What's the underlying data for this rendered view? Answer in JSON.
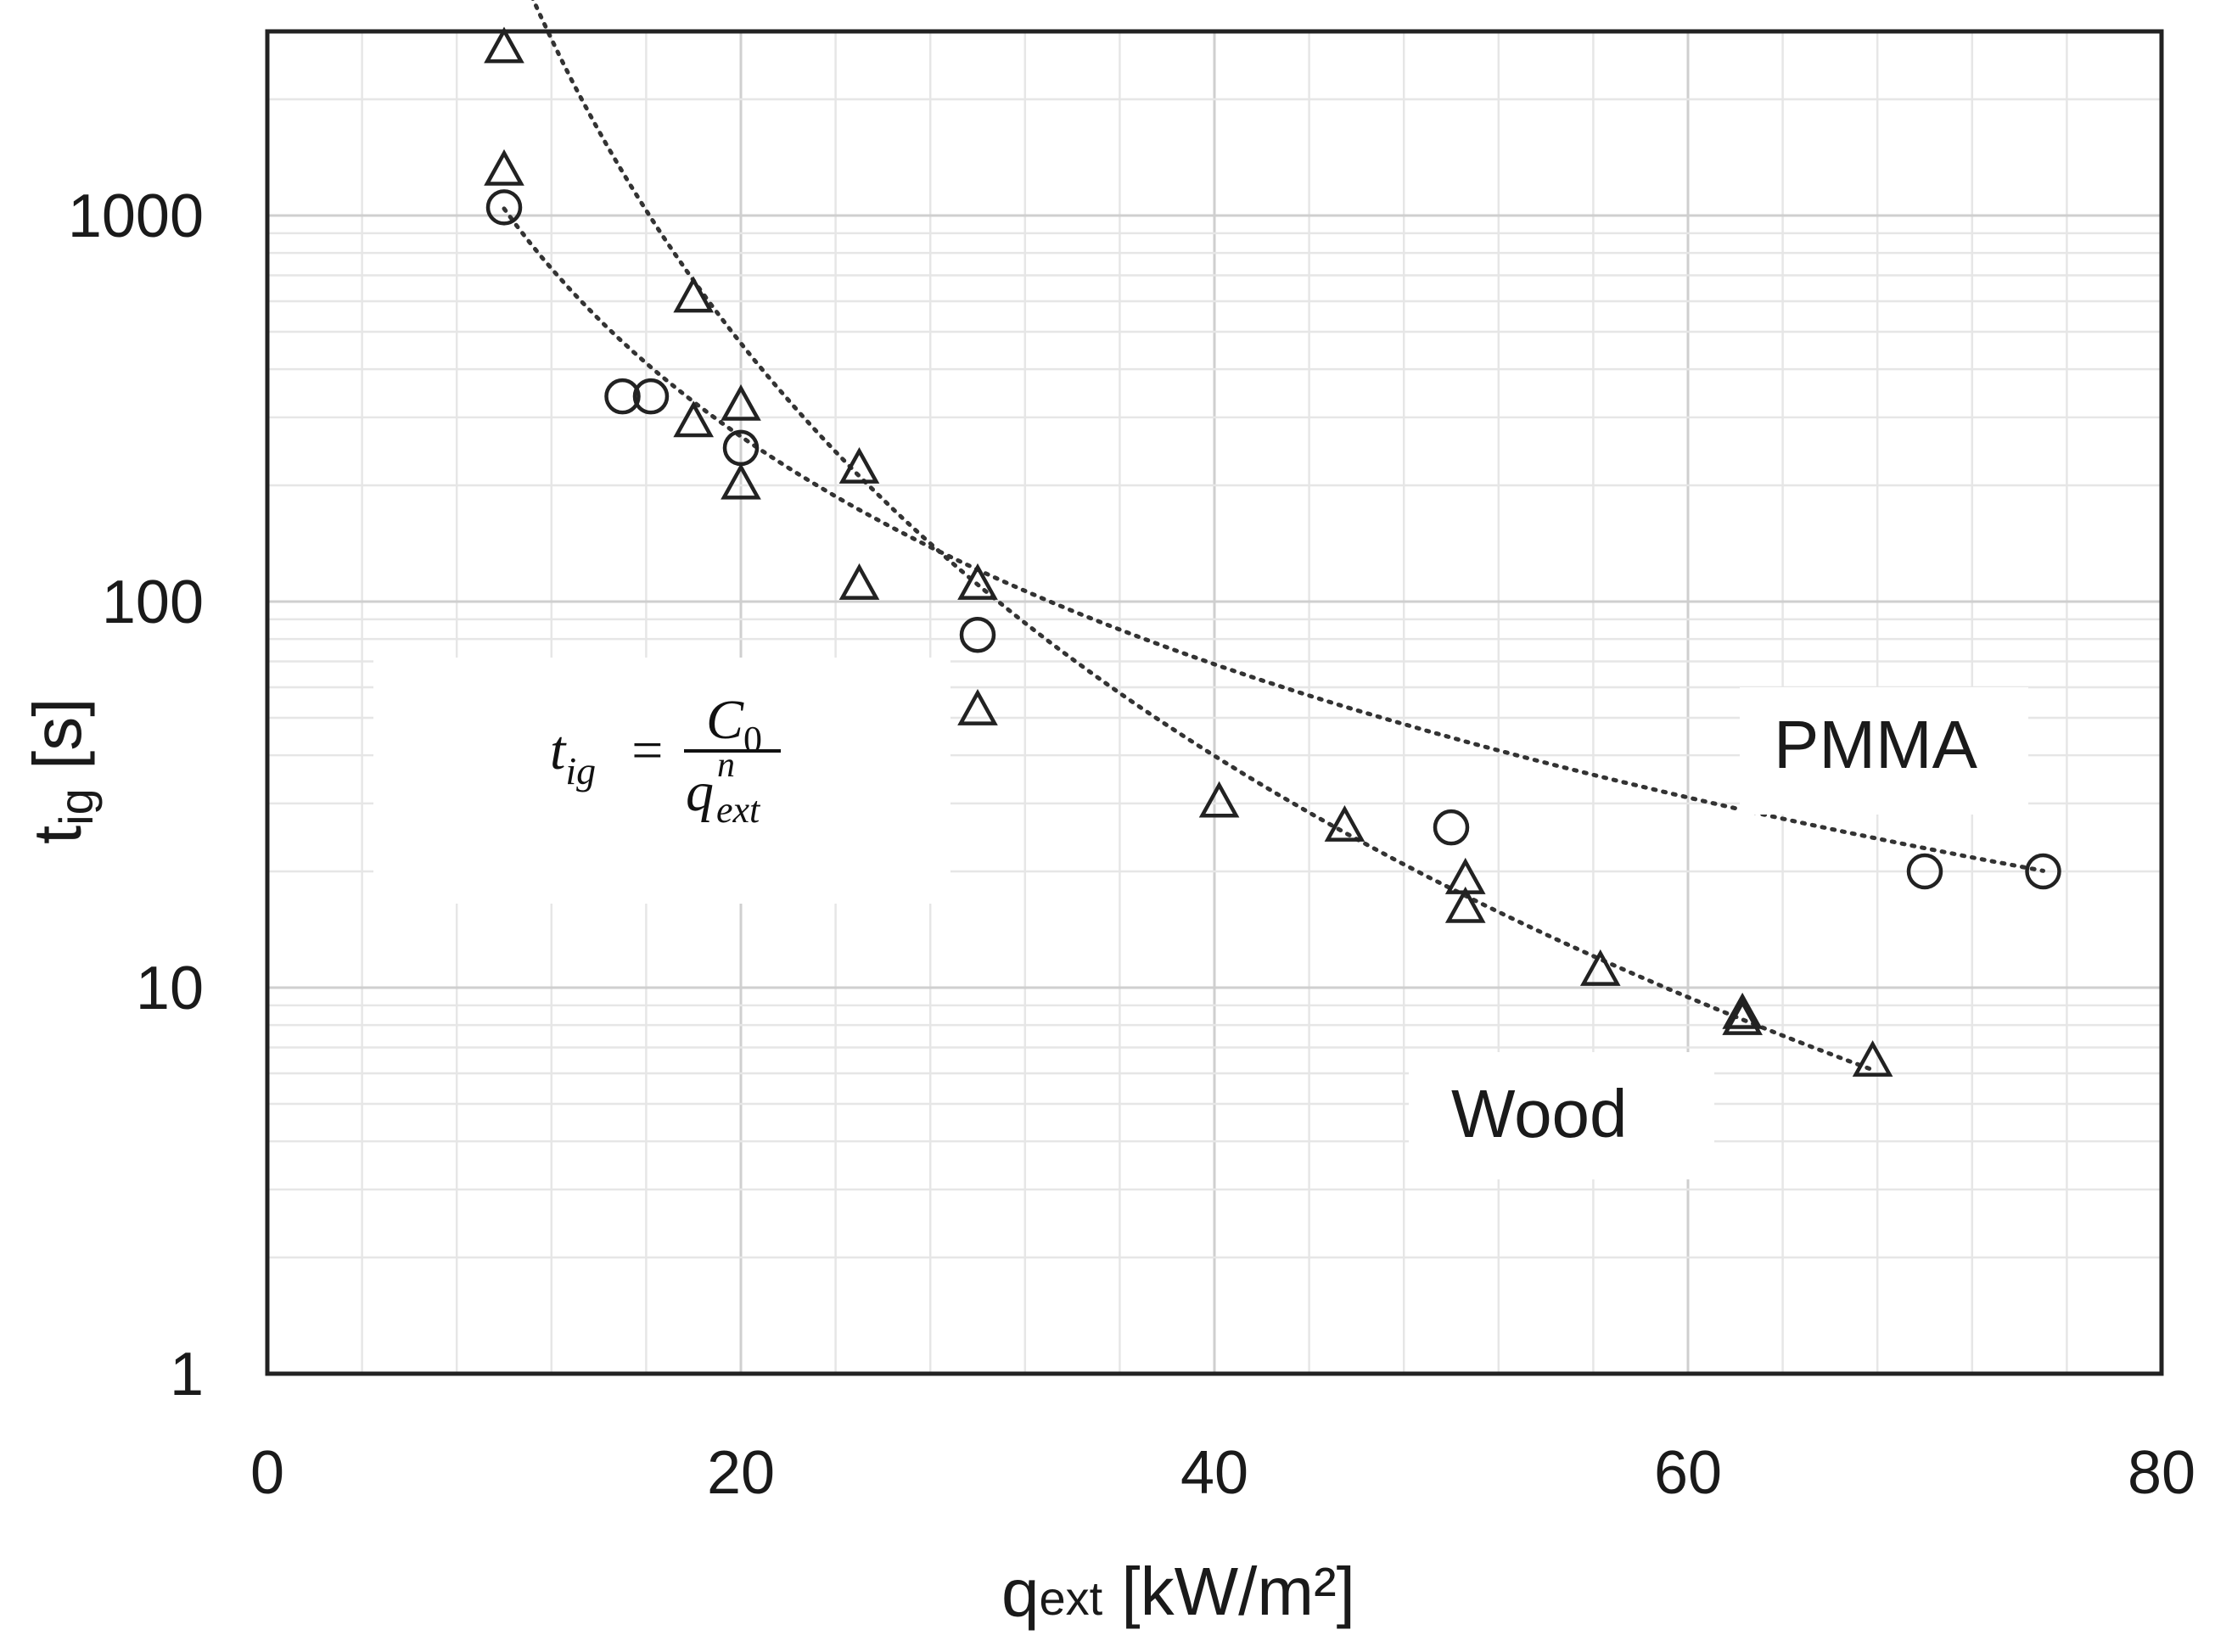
{
  "chart_data": {
    "type": "scatter",
    "title": "",
    "xlabel": {
      "main": "q",
      "sub": "ext",
      "unit": " [kW/m²]"
    },
    "ylabel": {
      "main": "t",
      "sub": "ig",
      "unit": " [s]"
    },
    "xlim": [
      0,
      80
    ],
    "ylim": [
      1,
      3000
    ],
    "yscale": "log",
    "grid": true,
    "x_ticks": [
      0,
      20,
      40,
      60,
      80
    ],
    "x_tick_labels": [
      "0",
      "20",
      "40",
      "60",
      "80"
    ],
    "y_ticks": [
      1,
      10,
      100,
      1000
    ],
    "y_tick_labels": [
      "1",
      "10",
      "100",
      "1000"
    ],
    "equation": {
      "lhs": "t",
      "lhs_sub": "ig",
      "equals": "=",
      "num": "C",
      "num_sub": "0",
      "den": "q",
      "den_sup": "n",
      "den_sub": "ext"
    },
    "series": [
      {
        "name": "PMMA",
        "marker": "circle",
        "x": [
          10,
          15,
          16.2,
          20,
          30,
          50,
          70,
          75
        ],
        "y": [
          1050,
          340,
          340,
          250,
          82,
          26,
          20,
          20
        ],
        "fit": {
          "type": "power",
          "C0": 95000,
          "n": 1.96,
          "x_range": [
            10,
            75
          ]
        }
      },
      {
        "name": "Wood",
        "marker": "triangle",
        "x": [
          10,
          10,
          18,
          18,
          20,
          20,
          25,
          25,
          30,
          30,
          40.2,
          45.5,
          50.6,
          50.6,
          56.3,
          62.3,
          62.3,
          67.8
        ],
        "y": [
          2700,
          1300,
          610,
          290,
          320,
          200,
          220,
          110,
          110,
          52,
          30,
          26,
          19,
          16,
          11,
          8.2,
          8.5,
          6.4
        ],
        "fit": {
          "type": "power",
          "C0": 19400000,
          "n": 3.55,
          "x_range": [
            10,
            67.8
          ]
        }
      }
    ],
    "annotations": [
      {
        "text": "PMMA",
        "series": "PMMA"
      },
      {
        "text": "Wood",
        "series": "Wood"
      }
    ]
  }
}
